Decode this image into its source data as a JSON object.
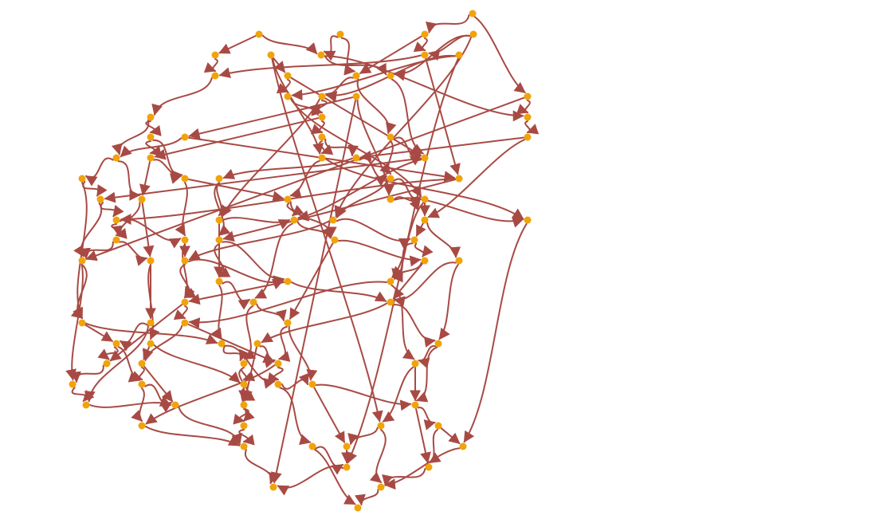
{
  "diagram": {
    "type": "directed-graph",
    "colors": {
      "node": "#f0a30a",
      "edge": "#a84a44",
      "background": "#ffffff"
    },
    "node_count": 100
  }
}
